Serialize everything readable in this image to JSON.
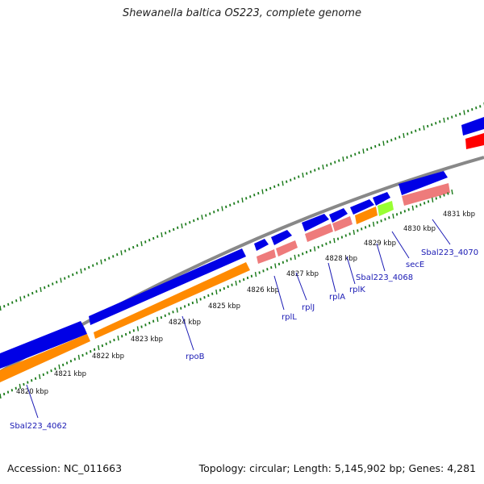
{
  "title": "Shewanella baltica OS223, complete genome",
  "footer": {
    "accession": "Accession: NC_011663",
    "summary": "Topology: circular; Length: 5,145,902 bp; Genes: 4,281"
  },
  "colors": {
    "forward_cds": "#0000e6",
    "forward_other": "#ff0000",
    "gene": "#ff8a00",
    "rrna_like": "#ee7b7b",
    "trna": "#99ff33",
    "backbone": "#888888",
    "ticks": "#1a7a1a",
    "label": "#1a1ab4"
  },
  "kbp_labels": [
    "4820 kbp",
    "4821 kbp",
    "4822 kbp",
    "4823 kbp",
    "4824 kbp",
    "4825 kbp",
    "4826 kbp",
    "4827 kbp",
    "4828 kbp",
    "4829 kbp",
    "4830 kbp",
    "4831 kbp"
  ],
  "gene_labels": [
    "Sbal223_4062",
    "rpoB",
    "rplL",
    "rplJ",
    "rplA",
    "rplK",
    "Sbal223_4068",
    "secE",
    "Sbal223_4070"
  ]
}
